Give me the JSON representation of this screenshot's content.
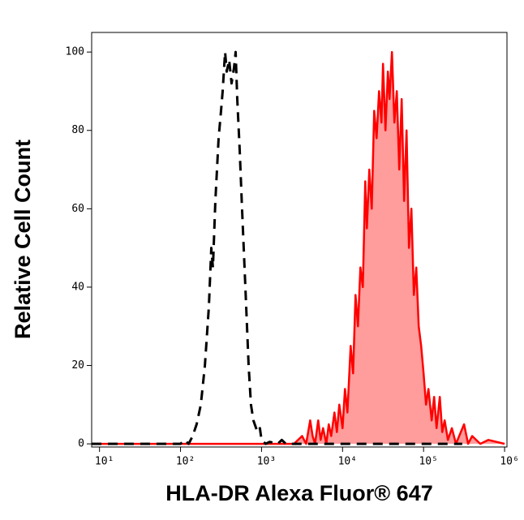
{
  "chart_data": {
    "type": "histogram-overlay",
    "xlabel": "HLA-DR Alexa Fluor® 647",
    "ylabel": "Relative Cell Count",
    "xscale": "log",
    "xlim": [
      8,
      1070000
    ],
    "ylim": [
      -0.8,
      105
    ],
    "xticks": [
      {
        "value": 10,
        "label": "10¹"
      },
      {
        "value": 100,
        "label": "10²"
      },
      {
        "value": 1000,
        "label": "10³"
      },
      {
        "value": 10000,
        "label": "10⁴"
      },
      {
        "value": 100000,
        "label": "10⁵"
      },
      {
        "value": 1000000,
        "label": "10⁶"
      }
    ],
    "yticks": [
      0,
      20,
      40,
      60,
      80,
      100
    ],
    "series": [
      {
        "color": "#ff0000",
        "fill": "#ff9c9c",
        "line_style": "solid",
        "x": [
          8,
          1000,
          2512,
          3162,
          3548,
          3981,
          4266,
          4571,
          5012,
          5370,
          5754,
          6310,
          6761,
          7244,
          7943,
          8511,
          9120,
          10000,
          10715,
          11482,
          12589,
          13490,
          14454,
          15488,
          16596,
          17783,
          19055,
          19953,
          21380,
          22909,
          24547,
          26303,
          28184,
          30200,
          31623,
          33884,
          36308,
          38019,
          40738,
          43652,
          46774,
          50119,
          53703,
          57544,
          61660,
          66069,
          70795,
          75858,
          81283,
          87096,
          93325,
          100000,
          107152,
          114815,
          125893,
          134896,
          144544,
          158489,
          169824,
          181970,
          199526,
          223872,
          251189,
          316228,
          354813,
          398107,
          501187,
          630957,
          1000000
        ],
        "values": [
          0,
          0,
          0,
          2,
          0,
          6,
          2,
          0,
          6,
          1,
          4,
          0,
          5,
          2,
          8,
          3,
          10,
          4,
          14,
          8,
          25,
          18,
          38,
          30,
          45,
          40,
          67,
          55,
          70,
          60,
          85,
          78,
          90,
          82,
          97,
          80,
          95,
          88,
          100,
          82,
          90,
          70,
          88,
          62,
          80,
          50,
          60,
          38,
          45,
          30,
          25,
          18,
          10,
          14,
          6,
          12,
          4,
          12,
          3,
          6,
          1,
          4,
          0,
          5,
          0,
          2,
          0,
          1,
          0
        ]
      },
      {
        "color": "#000000",
        "line_style": "dashed",
        "x": [
          8,
          100,
          112,
          126,
          141,
          158,
          178,
          200,
          224,
          240,
          251,
          269,
          295,
          316,
          331,
          355,
          372,
          398,
          427,
          457,
          479,
          501,
          537,
          575,
          631,
          692,
          741,
          794,
          891,
          955,
          1000,
          1122,
          1259,
          1585,
          1778,
          1995,
          300000
        ],
        "values": [
          0,
          0,
          1,
          0,
          2,
          5,
          10,
          20,
          35,
          50,
          45,
          62,
          78,
          85,
          90,
          100,
          95,
          98,
          92,
          96,
          100,
          88,
          75,
          60,
          40,
          20,
          10,
          6,
          3,
          4,
          1,
          0,
          0.5,
          0,
          1,
          0,
          0
        ]
      }
    ]
  }
}
